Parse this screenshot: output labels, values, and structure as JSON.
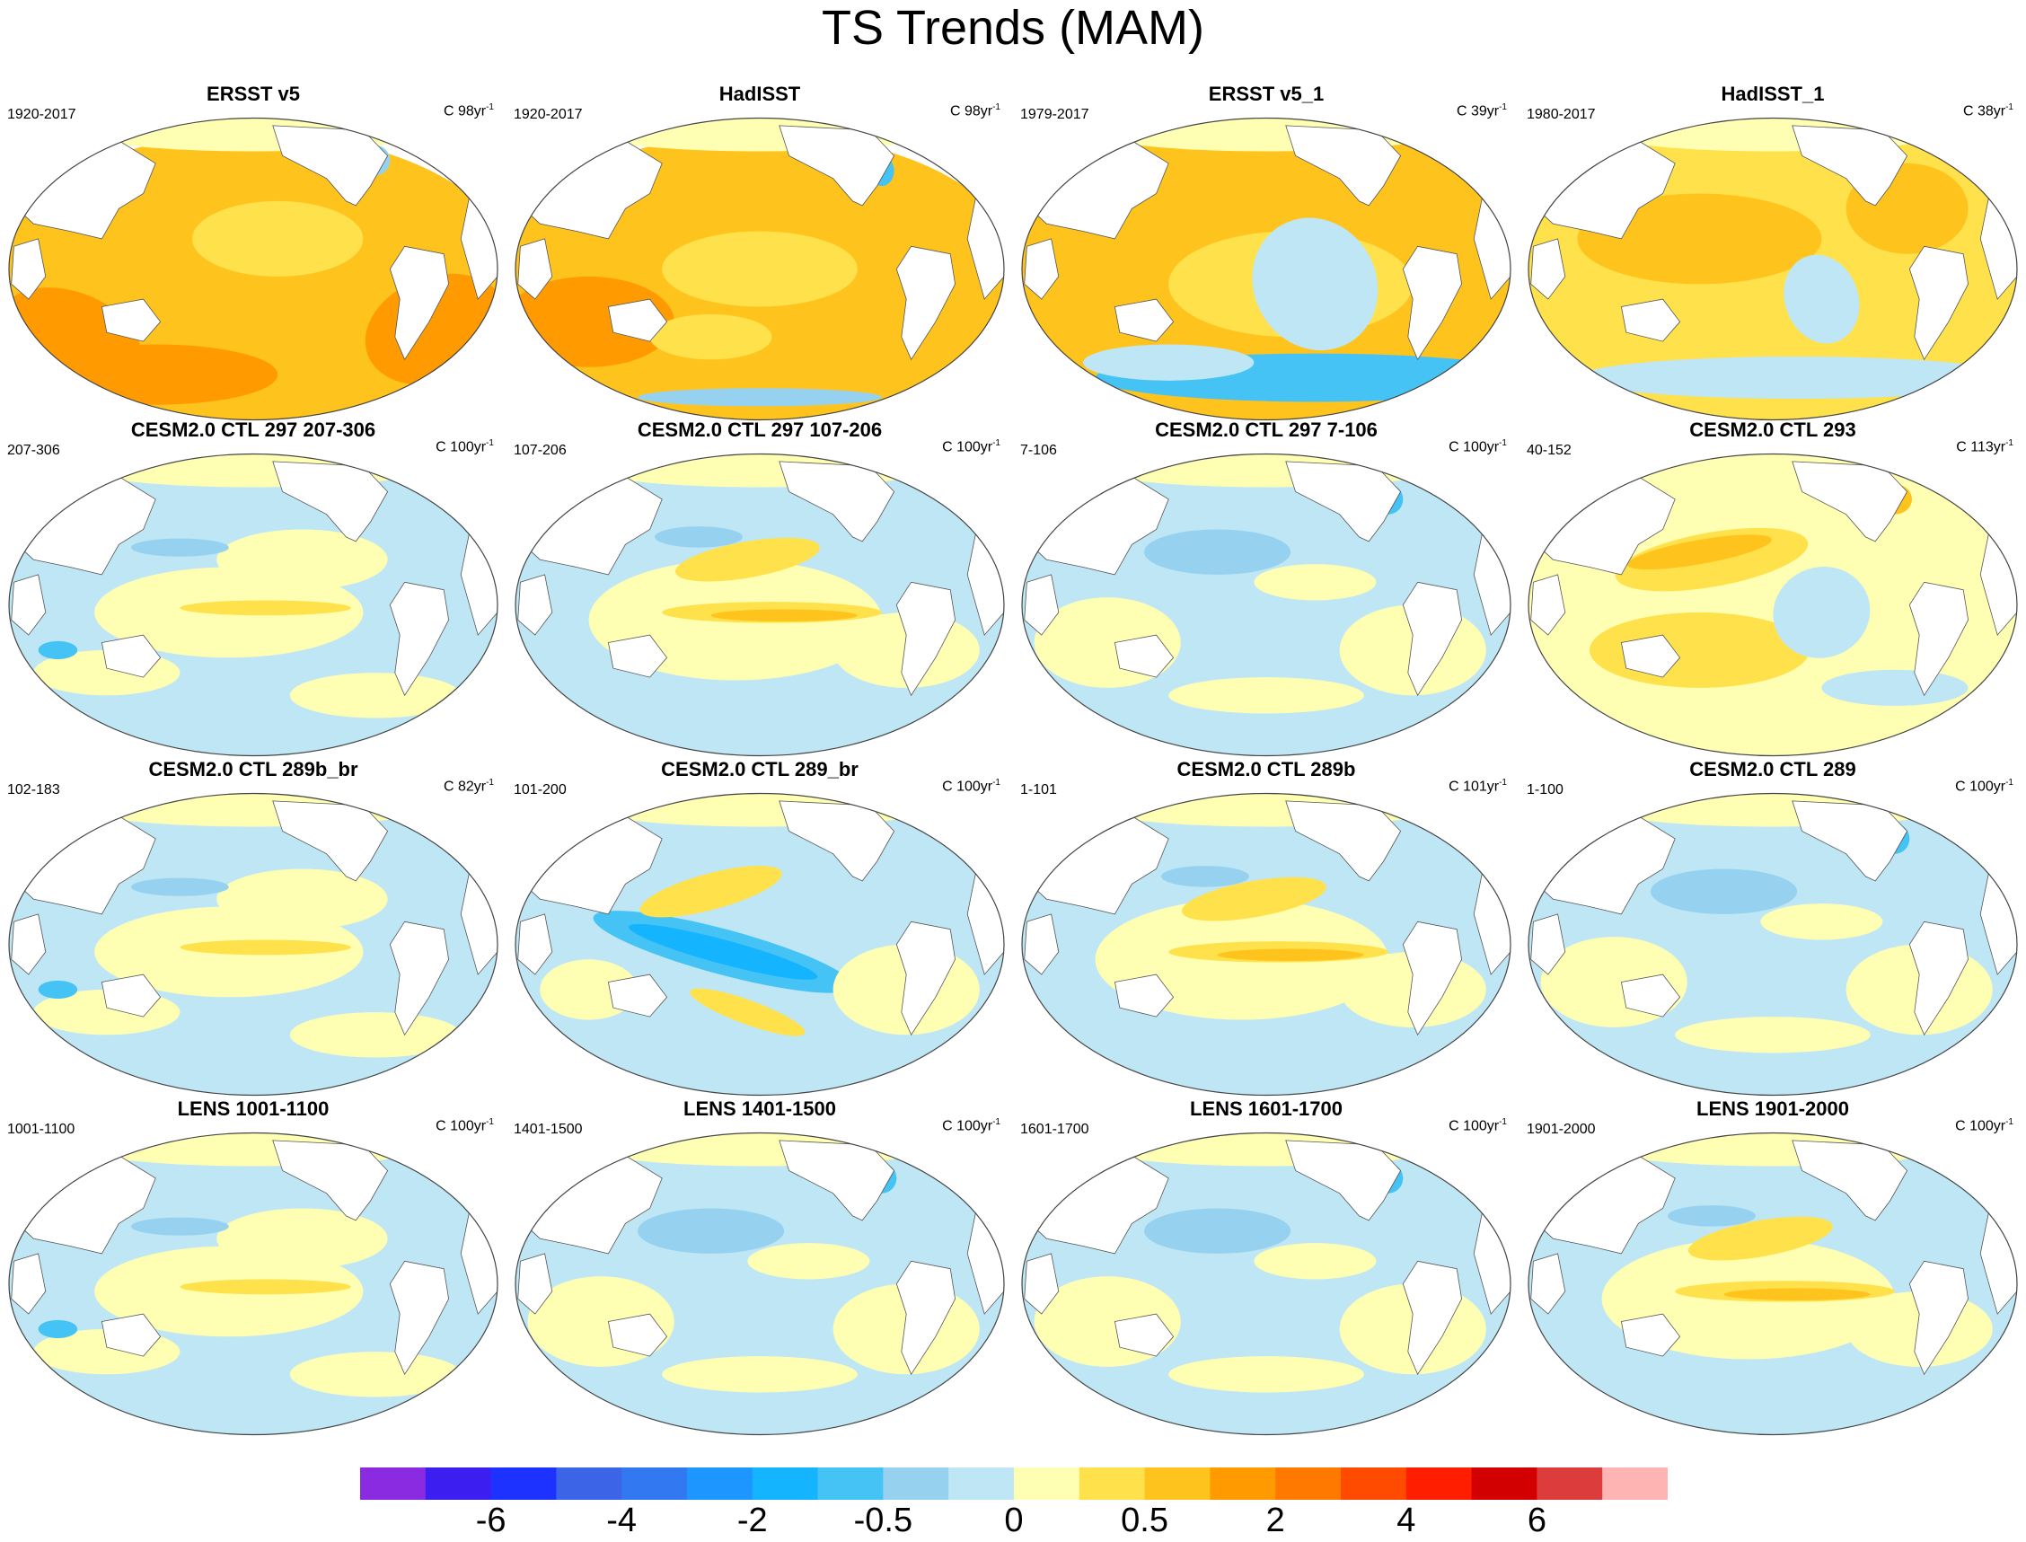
{
  "title": "TS Trends (MAM)",
  "panels": [
    {
      "title": "ERSST v5",
      "period": "1920-2017",
      "units_prefix": "C 98yr",
      "units_exp": "-1",
      "pattern": "warm-strong"
    },
    {
      "title": "HadISST",
      "period": "1920-2017",
      "units_prefix": "C 98yr",
      "units_exp": "-1",
      "pattern": "warm-strong-noisy"
    },
    {
      "title": "ERSST v5_1",
      "period": "1979-2017",
      "units_prefix": "C 39yr",
      "units_exp": "-1",
      "pattern": "warm-coolsouth"
    },
    {
      "title": "HadISST_1",
      "period": "1980-2017",
      "units_prefix": "C 38yr",
      "units_exp": "-1",
      "pattern": "warm-mild"
    },
    {
      "title": "CESM2.0 CTL 297 207-306",
      "period": "207-306",
      "units_prefix": "C 100yr",
      "units_exp": "-1",
      "pattern": "mixed-a"
    },
    {
      "title": "CESM2.0 CTL 297 107-206",
      "period": "107-206",
      "units_prefix": "C 100yr",
      "units_exp": "-1",
      "pattern": "mixed-warm-band"
    },
    {
      "title": "CESM2.0 CTL 297 7-106",
      "period": "7-106",
      "units_prefix": "C 100yr",
      "units_exp": "-1",
      "pattern": "mixed-cool"
    },
    {
      "title": "CESM2.0 CTL 293",
      "period": "40-152",
      "units_prefix": "C 113yr",
      "units_exp": "-1",
      "pattern": "mixed-warm"
    },
    {
      "title": "CESM2.0 CTL 289b_br",
      "period": "102-183",
      "units_prefix": "C 82yr",
      "units_exp": "-1",
      "pattern": "mixed-a"
    },
    {
      "title": "CESM2.0 CTL 289_br",
      "period": "101-200",
      "units_prefix": "C 100yr",
      "units_exp": "-1",
      "pattern": "cool-pacific"
    },
    {
      "title": "CESM2.0 CTL 289b",
      "period": "1-101",
      "units_prefix": "C 101yr",
      "units_exp": "-1",
      "pattern": "mixed-warm-band"
    },
    {
      "title": "CESM2.0 CTL 289",
      "period": "1-100",
      "units_prefix": "C 100yr",
      "units_exp": "-1",
      "pattern": "mixed-cool"
    },
    {
      "title": "LENS 1001-1100",
      "period": "1001-1100",
      "units_prefix": "C 100yr",
      "units_exp": "-1",
      "pattern": "mixed-a"
    },
    {
      "title": "LENS 1401-1500",
      "period": "1401-1500",
      "units_prefix": "C 100yr",
      "units_exp": "-1",
      "pattern": "mixed-cool"
    },
    {
      "title": "LENS 1601-1700",
      "period": "1601-1700",
      "units_prefix": "C 100yr",
      "units_exp": "-1",
      "pattern": "mixed-cool"
    },
    {
      "title": "LENS 1901-2000",
      "period": "1901-2000",
      "units_prefix": "C 100yr",
      "units_exp": "-1",
      "pattern": "mixed-warm-band"
    }
  ],
  "colorbar": {
    "colors": [
      "#8a2be2",
      "#3c1ef0",
      "#1e32ff",
      "#3c64e6",
      "#3278f0",
      "#1e96ff",
      "#14b4ff",
      "#46c3f5",
      "#96d2f0",
      "#bee6f5",
      "#ffffb4",
      "#ffe14b",
      "#ffc31e",
      "#ff9b00",
      "#ff7800",
      "#ff4b00",
      "#ff1e00",
      "#d20000",
      "#dc3c3c",
      "#ffb4b4"
    ],
    "labels": [
      "-6",
      "-4",
      "-2",
      "-0.5",
      "0",
      "0.5",
      "2",
      "4",
      "6"
    ],
    "label_boundaries": [
      2,
      4,
      6,
      8,
      10,
      12,
      14,
      16,
      18
    ]
  }
}
